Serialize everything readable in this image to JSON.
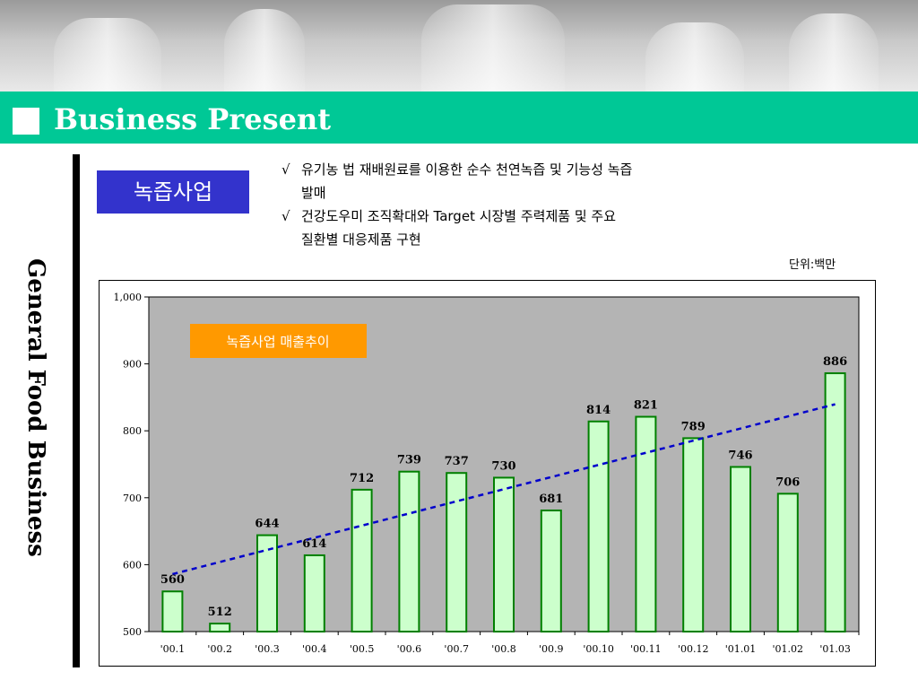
{
  "title": "Business Present",
  "side_title": "General Food Business",
  "badge": "녹즙사업",
  "bullets": [
    {
      "mark": "√",
      "lines": [
        "유기농 법 재배원료를 이용한  순수 천연녹즙 및 기능성 녹즙",
        "발매"
      ]
    },
    {
      "mark": "√",
      "lines": [
        "건강도우미 조직확대와 Target 시장별 주력제품 및 주요",
        "질환별  대응제품 구현"
      ]
    }
  ],
  "unit_label": "단위:백만",
  "colors": {
    "title_bar": "#00c896",
    "badge": "#3333cc",
    "plot_bg": "#b4b4b4",
    "bar_fill": "#ccffcc",
    "bar_stroke": "#008000",
    "trend": "#0000cc",
    "legend_box": "#ff9900"
  },
  "chart_data": {
    "type": "bar",
    "title": "녹즙사업 매출추이",
    "categories": [
      "'00.1",
      "'00.2",
      "'00.3",
      "'00.4",
      "'00.5",
      "'00.6",
      "'00.7",
      "'00.8",
      "'00.9",
      "'00.10",
      "'00.11",
      "'00.12",
      "'01.01",
      "'01.02",
      "'01.03"
    ],
    "values": [
      560,
      512,
      644,
      614,
      712,
      739,
      737,
      730,
      681,
      814,
      821,
      789,
      746,
      706,
      886
    ],
    "ylim": [
      500,
      1000
    ],
    "yticks": [
      500,
      600,
      700,
      800,
      900,
      1000
    ],
    "ytick_labels": [
      "500",
      "600",
      "700",
      "800",
      "900",
      "1,000"
    ],
    "trendline": {
      "type": "linear",
      "style": "dashed"
    },
    "grid": false,
    "data_labels": true
  }
}
